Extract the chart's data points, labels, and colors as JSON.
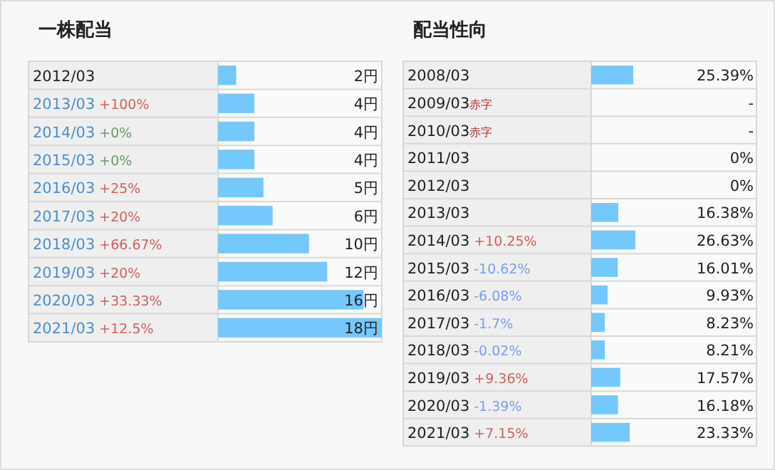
{
  "chart_data": [
    {
      "type": "bar",
      "orientation": "horizontal",
      "title": "一株配当",
      "categories": [
        "2012/03",
        "2013/03+100%",
        "2014/03+0%",
        "2015/03+0%",
        "2016/03+25%",
        "2017/03+20%",
        "2018/03+66.67%",
        "2019/03+20%",
        "2020/03+33.33%",
        "2021/03+12.5%"
      ],
      "values": [
        2,
        4,
        4,
        4,
        5,
        6,
        10,
        12,
        16,
        18
      ],
      "value_labels": [
        "2円",
        "4円",
        "4円",
        "4円",
        "5円",
        "6円",
        "10円",
        "12円",
        "16円",
        "18円"
      ],
      "color": "#75c8fc",
      "xlim": [
        0,
        18
      ]
    },
    {
      "type": "bar",
      "orientation": "horizontal",
      "title": "配当性向",
      "categories": [
        "2008/03",
        "2009/03赤字",
        "2010/03赤字",
        "2011/03",
        "2012/03",
        "2013/03",
        "2014/03+10.25%",
        "2015/03-10.62%",
        "2016/03-6.08%",
        "2017/03-1.7%",
        "2018/03-0.02%",
        "2019/03+9.36%",
        "2020/03-1.39%",
        "2021/03+7.15%"
      ],
      "values": [
        25.39,
        null,
        null,
        0,
        0,
        16.38,
        26.63,
        16.01,
        9.93,
        8.23,
        8.21,
        17.57,
        16.18,
        23.33
      ],
      "value_labels": [
        "25.39%",
        "-",
        "-",
        "0%",
        "0%",
        "16.38%",
        "26.63%",
        "16.01%",
        "9.93%",
        "8.23%",
        "8.21%",
        "17.57%",
        "16.18%",
        "23.33%"
      ],
      "color": "#75c8fc",
      "xlim": [
        0,
        100
      ]
    }
  ]
}
